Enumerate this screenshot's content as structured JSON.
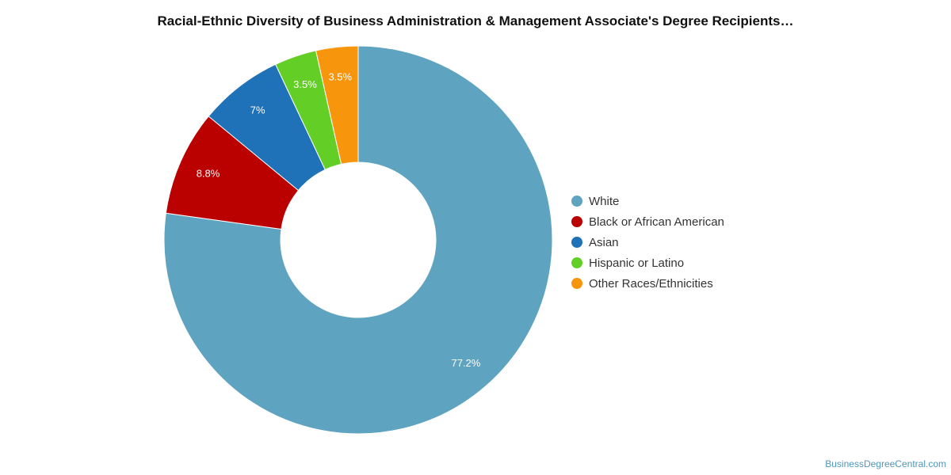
{
  "chart_data": {
    "type": "pie",
    "title": "Racial-Ethnic Diversity of Business Administration & Management Associate's Degree Recipients…",
    "categories": [
      "White",
      "Black or African American",
      "Asian",
      "Hispanic or Latino",
      "Other Races/Ethnicities"
    ],
    "values": [
      77.2,
      8.8,
      7,
      3.5,
      3.5
    ],
    "data_labels": [
      "77.2%",
      "8.8%",
      "7%",
      "3.5%",
      "3.5%"
    ],
    "colors": [
      "#5ea3c0",
      "#bb0000",
      "#1f72b8",
      "#63cf26",
      "#f7950d"
    ],
    "donut": true,
    "legend_position": "right"
  },
  "credit": "BusinessDegreeCentral.com"
}
